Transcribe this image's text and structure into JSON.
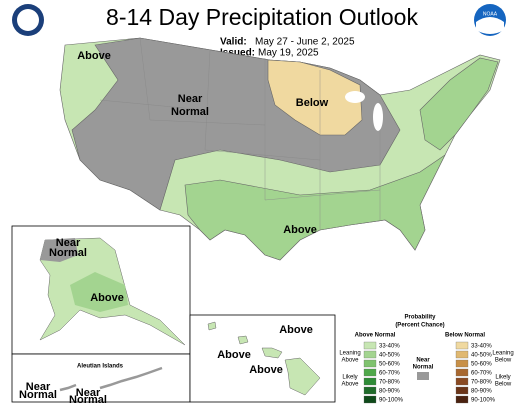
{
  "header": {
    "title": "8-14 Day Precipitation Outlook",
    "valid_label": "Valid:",
    "valid": "May 27 - June 2, 2025",
    "issued_label": "Issued:",
    "issued": "May 19, 2025",
    "logo": "NOAA"
  },
  "map_labels": [
    {
      "lines": [
        "Above"
      ]
    },
    {
      "lines": [
        "Near",
        "Normal"
      ]
    },
    {
      "lines": [
        "Below"
      ]
    },
    {
      "lines": [
        "Above"
      ]
    },
    {
      "lines": [
        "Near",
        "Normal"
      ]
    },
    {
      "lines": [
        "Above"
      ]
    },
    {
      "lines": [
        "Above"
      ]
    },
    {
      "lines": [
        "Above"
      ]
    },
    {
      "lines": [
        "Above"
      ]
    },
    {
      "lines": [
        "Near",
        "Normal"
      ]
    },
    {
      "lines": [
        "Near",
        "Normal"
      ]
    }
  ],
  "aleutian_title": "Aleutian Islands",
  "legend": {
    "title": [
      "Probability",
      "(Percent Chance)"
    ],
    "above_header": "Above Normal",
    "below_header": "Below Normal",
    "above_bins": [
      "33-40%",
      "40-50%",
      "50-60%",
      "60-70%",
      "70-80%",
      "80-90%",
      "90-100%"
    ],
    "below_bins": [
      "33-40%",
      "40-50%",
      "50-60%",
      "60-70%",
      "70-80%",
      "80-90%",
      "90-100%"
    ],
    "leaning_above": [
      "Leaning",
      "Above"
    ],
    "likely_above": [
      "Likely",
      "Above"
    ],
    "near_normal": [
      "Near",
      "Normal"
    ],
    "leaning_below": [
      "Leaning",
      "Below"
    ],
    "likely_below": [
      "Likely",
      "Below"
    ]
  }
}
